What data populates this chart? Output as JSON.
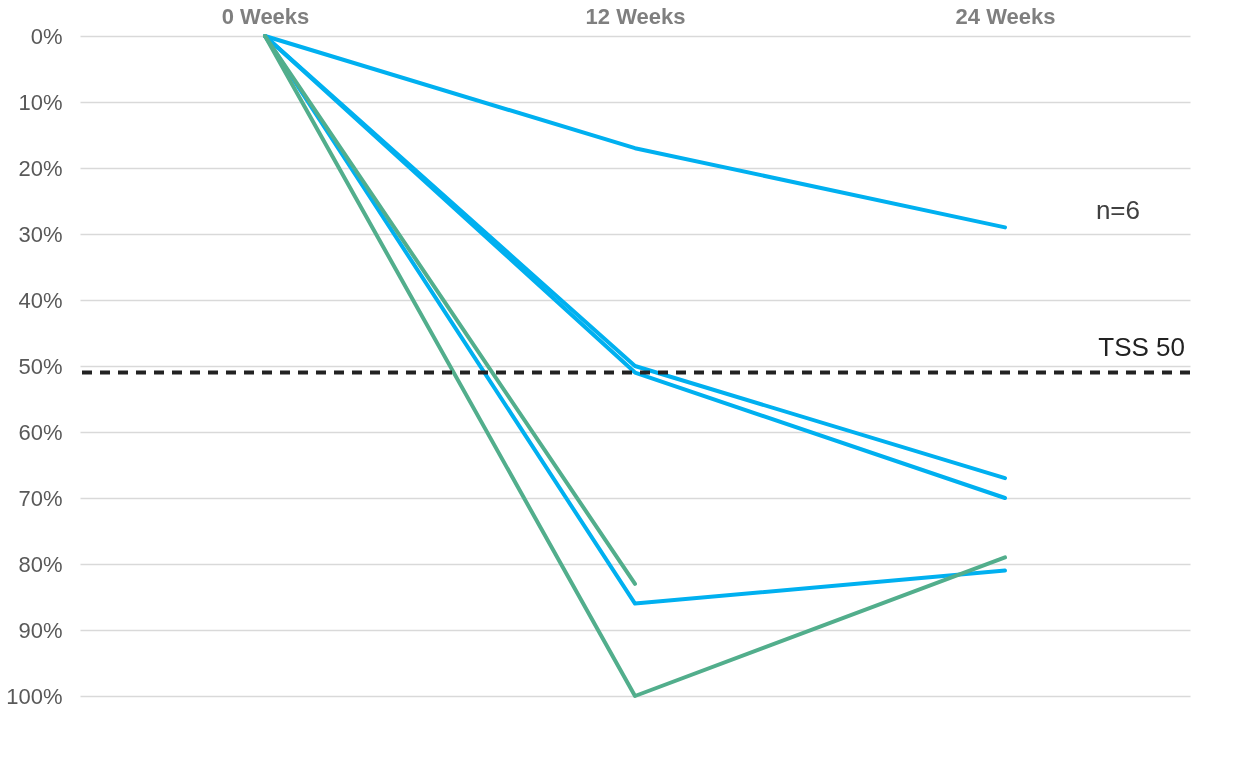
{
  "chart_data": {
    "type": "line",
    "categories": [
      "0 Weeks",
      "12 Weeks",
      "24 Weeks"
    ],
    "series": [
      {
        "color": "#00b0f0",
        "values": [
          0,
          17,
          29
        ]
      },
      {
        "color": "#00b0f0",
        "values": [
          0,
          50,
          67
        ]
      },
      {
        "color": "#00b0f0",
        "values": [
          0,
          51,
          70
        ]
      },
      {
        "color": "#00b0f0",
        "values": [
          0,
          86,
          81
        ]
      },
      {
        "color": "#52ae8c",
        "values": [
          0,
          100,
          79
        ]
      },
      {
        "color": "#52ae8c",
        "values": [
          0,
          83,
          null
        ]
      }
    ],
    "ylim": [
      100,
      0
    ],
    "yticks": [
      {
        "value": 0,
        "label": "0%"
      },
      {
        "value": 10,
        "label": "10%"
      },
      {
        "value": 20,
        "label": "20%"
      },
      {
        "value": 30,
        "label": "30%"
      },
      {
        "value": 40,
        "label": "40%"
      },
      {
        "value": 50,
        "label": "50%"
      },
      {
        "value": 60,
        "label": "60%"
      },
      {
        "value": 70,
        "label": "70%"
      },
      {
        "value": 80,
        "label": "80%"
      },
      {
        "value": 90,
        "label": "90%"
      },
      {
        "value": 100,
        "label": "100%"
      }
    ],
    "ref_lines": [
      {
        "axis": "y",
        "value": 51,
        "label": "TSS 50",
        "color": "#222222",
        "line_style": "dashed"
      }
    ],
    "annotations": [
      "n=6"
    ],
    "grid": "y",
    "legend": false,
    "marker": "none",
    "line_style": "solid"
  }
}
